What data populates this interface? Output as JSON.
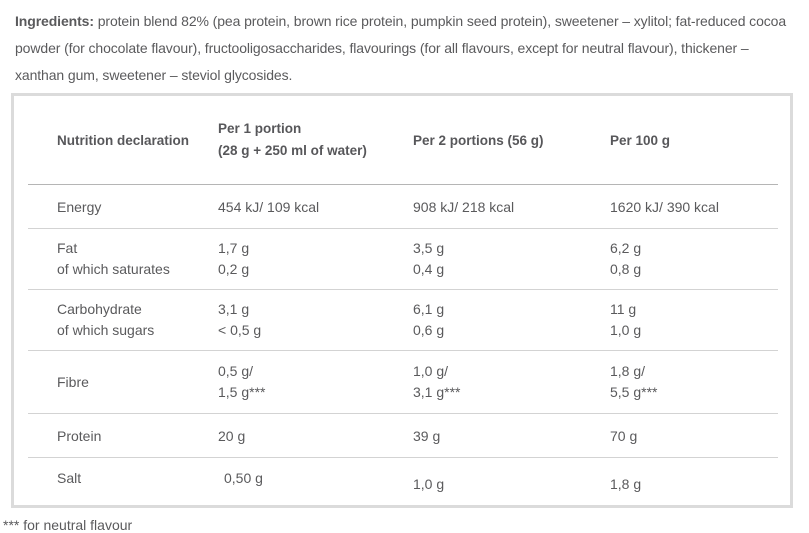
{
  "colors": {
    "text": "#5a5a5c",
    "table_border": "#dbdbdb",
    "row_separator": "#d3d3d3",
    "header_separator": "#b5b5b5",
    "background": "#ffffff"
  },
  "ingredients": {
    "label": "Ingredients:",
    "text": " protein blend 82% (pea protein, brown rice protein, pumpkin seed protein), sweetener – xylitol; fat-reduced cocoa powder (for chocolate flavour), fructooligosaccharides, flavourings (for all flavours, except for neutral flavour), thickener – xanthan gum, sweetener – steviol glycosides."
  },
  "table": {
    "header": {
      "col1": "Nutrition declaration",
      "col2_line1": "Per 1 portion",
      "col2_line2": "(28 g + 250 ml of water)",
      "col3": "Per 2 portions (56 g)",
      "col4": "Per 100 g"
    },
    "rows": [
      {
        "id": "energy",
        "label": "Energy",
        "per1": "454 kJ/ 109 kcal",
        "per2": "908 kJ/ 218 kcal",
        "per100": "1620 kJ/ 390 kcal"
      },
      {
        "id": "fat",
        "labels": [
          "Fat",
          "of which saturates"
        ],
        "per1": [
          "1,7 g",
          "0,2 g"
        ],
        "per2": [
          "3,5 g",
          "0,4 g"
        ],
        "per100": [
          "6,2 g",
          "0,8 g"
        ]
      },
      {
        "id": "carbohydrate",
        "labels": [
          "Carbohydrate",
          "of which sugars"
        ],
        "per1": [
          "3,1 g",
          "< 0,5 g"
        ],
        "per2": [
          "6,1 g",
          "0,6 g"
        ],
        "per100": [
          "11 g",
          "1,0 g"
        ]
      },
      {
        "id": "fibre",
        "label": "Fibre",
        "per1": [
          "0,5 g/",
          "1,5 g***"
        ],
        "per2": [
          "1,0 g/",
          "3,1 g***"
        ],
        "per100": [
          "1,8 g/",
          "5,5 g***"
        ]
      },
      {
        "id": "protein",
        "label": "Protein",
        "per1": "20 g",
        "per2": "39 g",
        "per100": "70 g"
      },
      {
        "id": "salt",
        "label": "Salt",
        "per1": "0,50 g",
        "per2": "1,0 g",
        "per100": "1,8 g"
      }
    ]
  },
  "footnote": "*** for neutral flavour"
}
